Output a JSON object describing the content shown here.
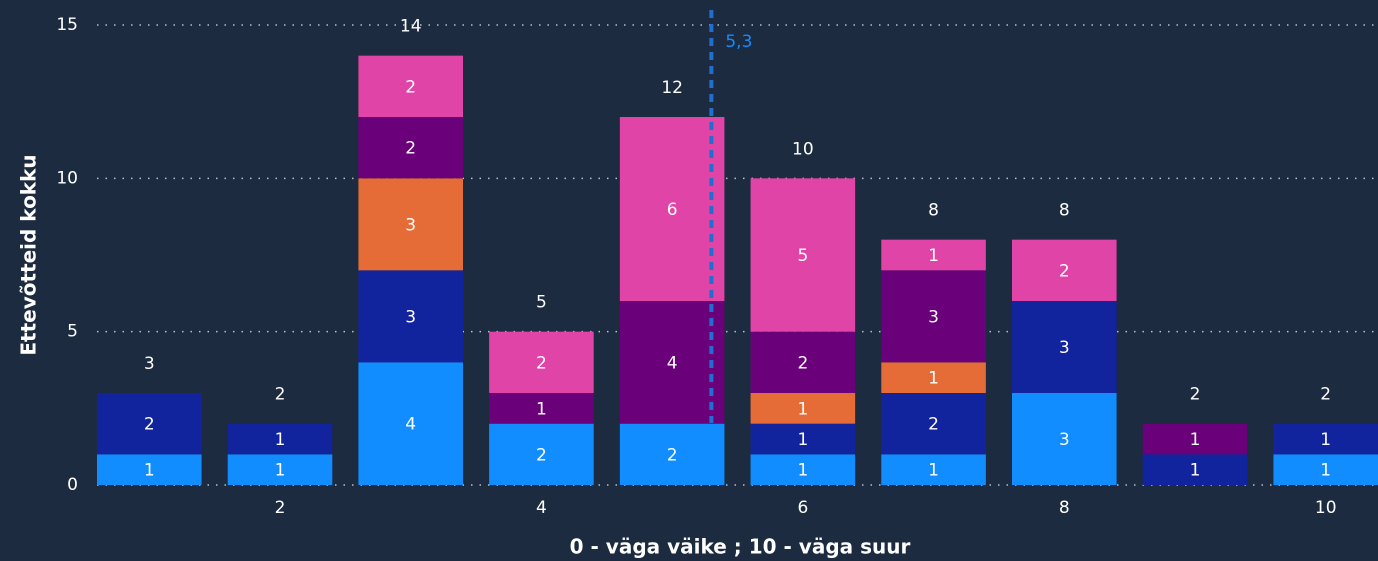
{
  "chart_data": {
    "type": "stacked_bar",
    "x_label": "0 - väga väike ; 10 - väga suur",
    "y_label": "Ettevõtteid kokku",
    "x": [
      1,
      2,
      3,
      4,
      5,
      6,
      7,
      8,
      9,
      10
    ],
    "series": [
      {
        "color": "#118dff",
        "values": [
          1,
          1,
          4,
          2,
          2,
          1,
          1,
          3,
          null,
          1
        ]
      },
      {
        "color": "#12239e",
        "values": [
          2,
          1,
          3,
          null,
          null,
          1,
          2,
          3,
          1,
          1
        ]
      },
      {
        "color": "#e66c37",
        "values": [
          null,
          null,
          3,
          null,
          null,
          1,
          1,
          null,
          null,
          null
        ]
      },
      {
        "color": "#6b007b",
        "values": [
          null,
          null,
          2,
          1,
          4,
          2,
          3,
          null,
          1,
          null
        ]
      },
      {
        "color": "#e044a7",
        "values": [
          null,
          null,
          2,
          2,
          6,
          5,
          1,
          2,
          null,
          null
        ]
      }
    ],
    "totals": [
      3,
      2,
      14,
      5,
      12,
      10,
      8,
      8,
      2,
      2
    ],
    "reference_line": {
      "value": 5.3,
      "label": "5,3",
      "color": "#1f6fd1"
    },
    "xlim": [
      0.6,
      10.4
    ],
    "xticks": [
      2,
      4,
      6,
      8,
      10
    ],
    "ylim": [
      0,
      15
    ],
    "yticks": [
      0,
      5,
      10,
      15
    ],
    "grid": true
  }
}
